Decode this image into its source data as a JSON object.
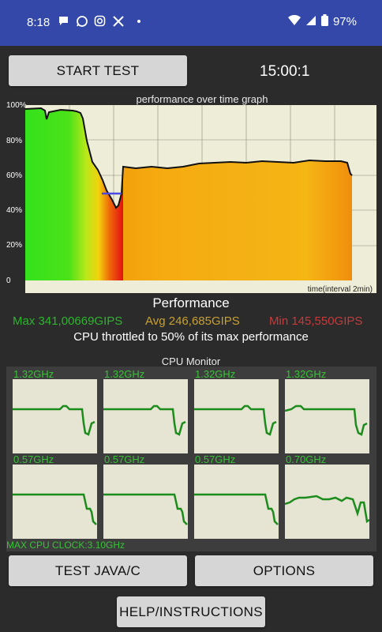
{
  "status_bar": {
    "time": "8:18",
    "battery": "97%",
    "icons": [
      "message-icon",
      "whatsapp-icon",
      "instagram-icon",
      "x-icon"
    ]
  },
  "controls": {
    "start_test": "START TEST",
    "timer": "15:00:1",
    "test_java": "TEST JAVA/C",
    "options": "OPTIONS",
    "help": "HELP/INSTRUCTIONS"
  },
  "graph": {
    "title": "performance over time graph",
    "y_ticks": [
      "100%",
      "80%",
      "60%",
      "40%",
      "20%",
      "0"
    ],
    "x_label": "time(interval 2min)"
  },
  "performance": {
    "title": "Performance",
    "max": "Max 341,00669GIPS",
    "avg": "Avg 246,685GIPS",
    "min": "Min 145,550GIPS",
    "throttle": "CPU throttled to 50% of its max performance"
  },
  "cpu_monitor": {
    "title": "CPU Monitor",
    "cores": [
      {
        "freq": "1.32GHz"
      },
      {
        "freq": "1.32GHz"
      },
      {
        "freq": "1.32GHz"
      },
      {
        "freq": "1.32GHz"
      },
      {
        "freq": "0.57GHz"
      },
      {
        "freq": "0.57GHz"
      },
      {
        "freq": "0.57GHz"
      },
      {
        "freq": "0.70GHz"
      }
    ],
    "max_clock": "MAX CPU CLOCK:3.10GHz"
  },
  "colors": {
    "accent_bar": "#3348a8",
    "max_color": "#2db52d",
    "avg_color": "#c8a030",
    "min_color": "#c83a3a",
    "core_line": "#1c8c1c"
  }
}
